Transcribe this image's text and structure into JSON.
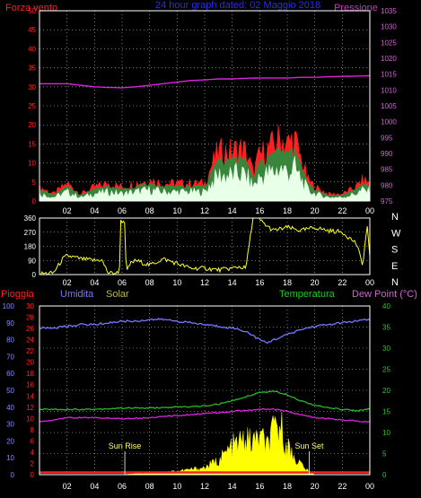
{
  "header": {
    "wind_label": "Forza vento",
    "title": "24 hour graph dated: 02 Maggio 2018",
    "pressure_label": "Pressione"
  },
  "labels": {
    "rain": "Pioggia",
    "humidity": "Umidita",
    "solar": "Solar",
    "temperature": "Temperatura",
    "dewpoint": "Dew Point (°C)",
    "sunrise": "Sun Rise",
    "sunset": "Sun Set"
  },
  "colors": {
    "background": "#000000",
    "wind": "#ff2020",
    "wind_avg": "#2e8b3e",
    "gust": "#e8ffe8",
    "pressure": "#dd22dd",
    "direction": "#ffff22",
    "humidity": "#7777ff",
    "temperature": "#22bb22",
    "dewpoint": "#dd22dd",
    "rain": "#ff2020",
    "solar": "#ffff00",
    "grid": "#cccccc",
    "axis_red": "#ff2020",
    "axis_blue": "#8888ff",
    "axis_pink": "#cc66cc",
    "axis_green": "#22cc22"
  },
  "chart_data": [
    {
      "type": "area",
      "x_ticks": [
        "02",
        "04",
        "06",
        "08",
        "10",
        "12",
        "14",
        "16",
        "18",
        "20",
        "22",
        "00"
      ],
      "xlim": [
        0,
        24
      ],
      "left_axis": {
        "ticks": [
          0,
          5,
          10,
          15,
          20,
          25,
          30,
          35,
          40,
          45,
          50
        ],
        "ylim": [
          0,
          50
        ]
      },
      "right_axis": {
        "ticks": [
          975,
          980,
          985,
          990,
          995,
          1000,
          1005,
          1010,
          1015,
          1020,
          1025,
          1030,
          1035
        ],
        "ylim": [
          975,
          1035
        ]
      },
      "series": [
        {
          "name": "Forza vento",
          "x": [
            0,
            1,
            2,
            3,
            4,
            5,
            6,
            7,
            8,
            9,
            10,
            11,
            12,
            12.5,
            13,
            14,
            14.5,
            15,
            15.5,
            16,
            17,
            17.5,
            18,
            18.5,
            19,
            19.5,
            20,
            21,
            22,
            23,
            23.5,
            24
          ],
          "values": [
            4,
            2,
            5,
            2,
            4,
            5,
            4,
            5,
            6,
            5,
            5,
            5,
            5,
            10,
            14,
            14,
            15,
            14,
            8,
            13,
            16,
            18,
            16,
            18,
            12,
            6,
            4,
            2,
            2,
            4,
            6,
            5
          ]
        },
        {
          "name": "Pressione",
          "x": [
            0,
            1,
            2,
            3,
            4,
            5,
            6,
            7,
            8,
            9,
            10,
            11,
            12,
            13,
            14,
            15,
            16,
            17,
            18,
            19,
            20,
            21,
            22,
            23,
            24
          ],
          "values": [
            1012,
            1012,
            1012,
            1011.5,
            1011,
            1010.8,
            1010.7,
            1011,
            1011.5,
            1012,
            1012.5,
            1013,
            1013.2,
            1013.5,
            1013.5,
            1013.7,
            1013.8,
            1013.8,
            1013.8,
            1014,
            1014,
            1014.2,
            1014.3,
            1014.4,
            1014.5
          ]
        }
      ]
    },
    {
      "type": "line",
      "x_ticks": [
        "02",
        "04",
        "06",
        "08",
        "10",
        "12",
        "14",
        "16",
        "18",
        "20",
        "22",
        "00"
      ],
      "xlim": [
        0,
        24
      ],
      "ylim": [
        0,
        360
      ],
      "y_ticks": [
        0,
        90,
        180,
        270,
        360
      ],
      "right_labels": [
        "N",
        "W",
        "S",
        "E",
        "N"
      ],
      "series": [
        {
          "name": "direction",
          "x": [
            0,
            1,
            1.7,
            2,
            3,
            4,
            4.5,
            5,
            5.8,
            5.9,
            6.2,
            6.3,
            6.6,
            7,
            8,
            9,
            10,
            11,
            12,
            13,
            14,
            14.5,
            15,
            15.5,
            15.8,
            16,
            16.5,
            17,
            18,
            19,
            20,
            21,
            22,
            23,
            23.5,
            23.8,
            24
          ],
          "values": [
            5,
            10,
            100,
            120,
            100,
            90,
            95,
            10,
            10,
            340,
            340,
            10,
            70,
            90,
            60,
            100,
            70,
            40,
            40,
            30,
            40,
            50,
            40,
            360,
            360,
            350,
            310,
            280,
            300,
            280,
            300,
            280,
            270,
            200,
            60,
            320,
            100
          ]
        }
      ]
    },
    {
      "type": "line",
      "x_ticks": [
        "02",
        "04",
        "06",
        "08",
        "10",
        "12",
        "14",
        "16",
        "18",
        "20",
        "22",
        "00"
      ],
      "xlim": [
        0,
        24
      ],
      "left_axis_humidity": {
        "ticks": [
          0,
          10,
          20,
          30,
          40,
          50,
          60,
          70,
          80,
          90,
          100
        ],
        "ylim": [
          0,
          100
        ]
      },
      "left_axis_rain": {
        "ticks": [
          0,
          2,
          4,
          6,
          8,
          10,
          12,
          14,
          16,
          18,
          20,
          22,
          24,
          26,
          28,
          30
        ],
        "ylim": [
          0,
          30
        ]
      },
      "right_axis_temp": {
        "ticks": [
          0,
          5,
          10,
          15,
          20,
          25,
          30,
          35,
          40
        ],
        "ylim": [
          0,
          40
        ]
      },
      "series": [
        {
          "name": "Umidita",
          "x": [
            0,
            1,
            2,
            3,
            4,
            5,
            6,
            7,
            8,
            9,
            10,
            11,
            12,
            13,
            14,
            15,
            16,
            16.5,
            17,
            18,
            19,
            20,
            21,
            22,
            23,
            24
          ],
          "values": [
            87,
            87,
            88,
            89,
            89,
            90,
            91,
            91,
            92,
            92,
            91,
            90,
            89,
            88,
            87,
            85,
            80,
            78,
            80,
            83,
            86,
            88,
            89,
            90,
            91,
            92
          ]
        },
        {
          "name": "Temperatura",
          "x": [
            0,
            2,
            4,
            6,
            8,
            10,
            12,
            13,
            14,
            15,
            16,
            17,
            18,
            19,
            20,
            21,
            22,
            23,
            24
          ],
          "values": [
            15.5,
            15.5,
            15.5,
            15.8,
            15.8,
            16,
            16.3,
            16.7,
            17.5,
            18.5,
            19.5,
            19.8,
            19,
            17.5,
            16.5,
            15.8,
            15.5,
            15.2,
            15.5
          ]
        },
        {
          "name": "Dew Point",
          "x": [
            0,
            2,
            4,
            6,
            8,
            10,
            12,
            14,
            16,
            17,
            18,
            19,
            20,
            22,
            24
          ],
          "values": [
            12.5,
            13.5,
            13.5,
            13.3,
            13.5,
            14,
            14.5,
            15,
            15.5,
            15.5,
            15,
            14.2,
            13.5,
            13,
            12.5
          ]
        },
        {
          "name": "Solar",
          "x": [
            0,
            6,
            8,
            10,
            11,
            12,
            12.5,
            13,
            13.5,
            14,
            14.5,
            15,
            15.5,
            16,
            16.5,
            17,
            17.5,
            18,
            18.5,
            19,
            19.5,
            20,
            24
          ],
          "values": [
            0,
            0,
            0.5,
            1,
            1.5,
            2,
            3,
            4,
            6,
            8,
            9,
            10,
            9,
            11,
            8,
            12,
            14,
            8,
            5,
            3,
            1,
            0,
            0
          ]
        },
        {
          "name": "Pioggia",
          "x": [
            0,
            24
          ],
          "values": [
            0.4,
            0.4
          ]
        }
      ],
      "annotations": [
        {
          "text": "Sun Rise",
          "x": 6.2
        },
        {
          "text": "Sun Set",
          "x": 19.6
        }
      ]
    }
  ]
}
